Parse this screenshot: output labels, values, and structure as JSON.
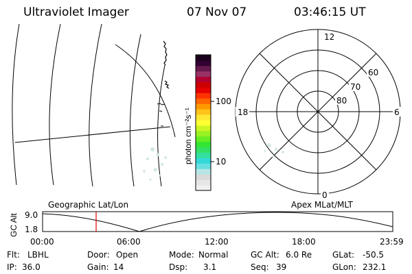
{
  "header": {
    "instrument": "Ultraviolet Imager",
    "date": "07 Nov 07",
    "time": "03:46:15 UT"
  },
  "colorbar": {
    "label": "photon cm⁻²s⁻¹",
    "ticks": [
      "100",
      "10"
    ],
    "colors": [
      "#f0f0f0",
      "#e6e6e6",
      "#d9d9d9",
      "#b8e6e6",
      "#66e0e0",
      "#33d9d9",
      "#33e0a0",
      "#33e066",
      "#33e633",
      "#66ee22",
      "#99f022",
      "#ccf522",
      "#ffff33",
      "#ffe833",
      "#ffc41a",
      "#ff9900",
      "#ff6600",
      "#ff3300",
      "#e60000",
      "#cc0000",
      "#b30033",
      "#993366",
      "#661a4d",
      "#330033",
      "#1a001a"
    ]
  },
  "polar": {
    "mlt_labels": {
      "top": "12",
      "bottom": "0",
      "left": "18",
      "right": "6"
    },
    "lat_labels": [
      "60",
      "70",
      "80"
    ]
  },
  "lower": {
    "left_title": "Geographic Lat/Lon",
    "right_title": "Apex MLat/MLT",
    "yaxis_label": "GC Alt",
    "y_ticks": [
      "9.0",
      "1.8"
    ],
    "x_ticks": [
      "00:00",
      "06:00",
      "12:00",
      "18:00",
      "23:59"
    ],
    "marker_color": "#e00000"
  },
  "info": {
    "flt_label": "Flt:",
    "flt_value": "LBHL",
    "ip_label": "IP:",
    "ip_value": "36.0",
    "door_label": "Door:",
    "door_value": "Open",
    "gain_label": "Gain:",
    "gain_value": "14",
    "mode_label": "Mode:",
    "mode_value": "Normal",
    "dsp_label": "Dsp:",
    "dsp_value": "3.1",
    "gcalt_label": "GC Alt:",
    "gcalt_value": "6.0 Re",
    "seq_label": "Seq:",
    "seq_value": "39",
    "glat_label": "GLat:",
    "glat_value": "-50.5",
    "glon_label": "GLon:",
    "glon_value": "232.1"
  }
}
